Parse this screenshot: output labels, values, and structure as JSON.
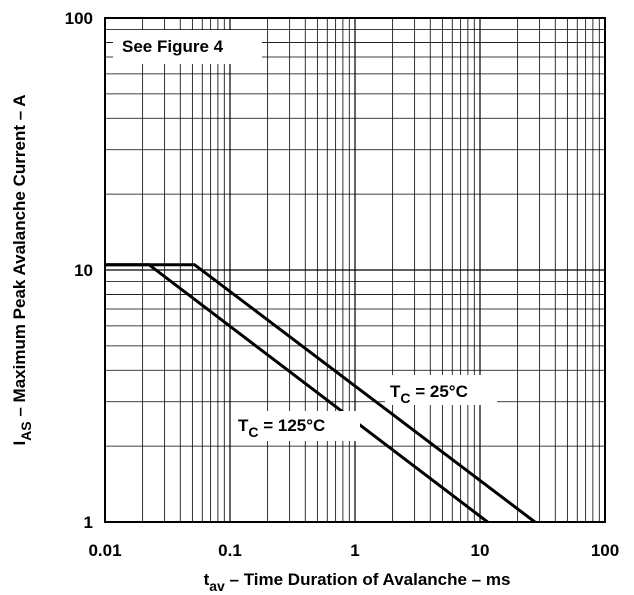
{
  "chart_data": {
    "type": "line",
    "title": "",
    "xlabel": {
      "main": "t",
      "sub": "av",
      "rest": " – Time Duration of Avalanche – ms"
    },
    "ylabel": {
      "main": "I",
      "sub": "AS",
      "rest": " – Maximum Peak Avalanche Current – A"
    },
    "x_scale": "log",
    "y_scale": "log",
    "xlim": [
      0.01,
      100
    ],
    "ylim": [
      1,
      100
    ],
    "grid": true,
    "x_ticks": [
      {
        "value": 0.01,
        "label": "0.01"
      },
      {
        "value": 0.1,
        "label": "0.1"
      },
      {
        "value": 1,
        "label": "1"
      },
      {
        "value": 10,
        "label": "10"
      },
      {
        "value": 100,
        "label": "100"
      }
    ],
    "y_ticks": [
      {
        "value": 1,
        "label": "1"
      },
      {
        "value": 10,
        "label": "10"
      },
      {
        "value": 100,
        "label": "100"
      }
    ],
    "note": "See Figure 4",
    "series": [
      {
        "name": "",
        "label": {
          "main": "T",
          "sub": "C",
          "rest": " = 25°C"
        },
        "x": [
          0.01,
          0.052,
          27.5
        ],
        "y": [
          10.5,
          10.5,
          1.0
        ]
      },
      {
        "name": "",
        "label": {
          "main": "T",
          "sub": "C",
          "rest": " = 125°C"
        },
        "x": [
          0.01,
          0.0225,
          11.5
        ],
        "y": [
          10.5,
          10.5,
          1.0
        ]
      }
    ],
    "colors": {
      "line": "#000000",
      "grid": "#000000",
      "background": "#ffffff"
    }
  }
}
